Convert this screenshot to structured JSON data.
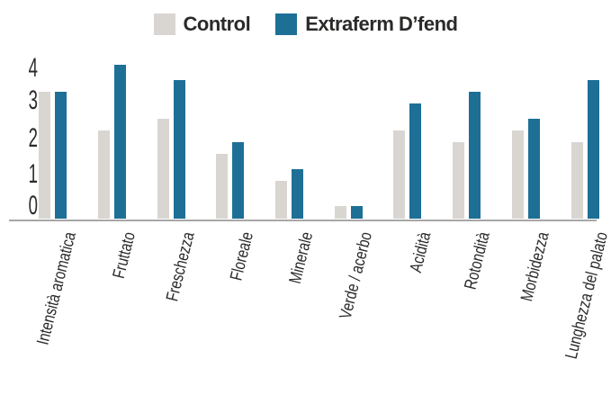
{
  "chart_data": {
    "type": "bar",
    "title": "",
    "categories": [
      "Intensità aromatica",
      "Fruttato",
      "Freschezza",
      "Floreale",
      "Minerale",
      "Verde / acerbo",
      "Acidità",
      "Rotondità",
      "Morbidezza",
      "Lunghezza del palato"
    ],
    "series": [
      {
        "name": "Control",
        "color": "#d9d6d2",
        "values": [
          3.3,
          2.3,
          2.6,
          1.7,
          1.0,
          0.35,
          2.3,
          2.0,
          2.3,
          2.0
        ]
      },
      {
        "name": "Extraferm D’fend",
        "color": "#1e6f96",
        "values": [
          3.3,
          4.0,
          3.6,
          2.0,
          1.3,
          0.35,
          3.0,
          3.3,
          2.6,
          3.6
        ]
      }
    ],
    "xlabel": "",
    "ylabel": "",
    "ylim": [
      0,
      4
    ],
    "yticks": [
      0,
      1,
      2,
      3,
      4
    ],
    "grid": false,
    "legend_position": "top-center"
  },
  "colors": {
    "control_bar": "#d9d6d2",
    "extraferm_bar": "#1e6f96",
    "axis_line": "#a7a7a7",
    "text": "#2b2a29",
    "background": "#ffffff"
  }
}
